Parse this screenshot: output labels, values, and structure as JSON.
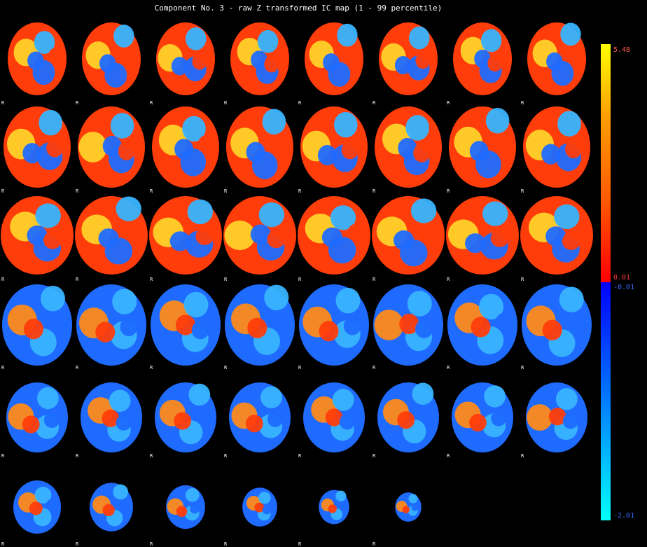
{
  "title": "Component No. 3 - raw Z transformed IC map (1 - 99 percentile)",
  "colorbar": {
    "max_label": "5.48",
    "pos_min_label": "0.01",
    "neg_min_label": "-0.01",
    "neg_max_label": "-2.01",
    "positive_colors": [
      "#ffff00",
      "#ffa000",
      "#ff5a00",
      "#ff0000"
    ],
    "negative_colors": [
      "#0000ff",
      "#0070ff",
      "#00ffff"
    ]
  },
  "orientation_label": "R",
  "slice_count": 46,
  "background_color": "#000000"
}
